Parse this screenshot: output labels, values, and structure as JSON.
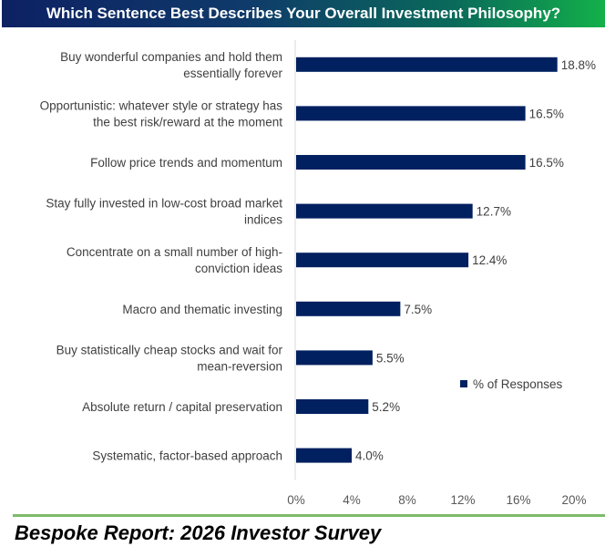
{
  "chart_data": {
    "type": "bar",
    "orientation": "horizontal",
    "title": "Which Sentence Best Describes Your Overall Investment Philosophy?",
    "categories": [
      [
        "Buy wonderful companies and hold them",
        "essentially forever"
      ],
      [
        "Opportunistic: whatever style or strategy has",
        "the best risk/reward at the moment"
      ],
      [
        "Follow price trends and momentum"
      ],
      [
        "Stay fully invested in low-cost broad market",
        "indices"
      ],
      [
        "Concentrate on a small number of high-",
        "conviction ideas"
      ],
      [
        "Macro and thematic investing"
      ],
      [
        "Buy statistically cheap stocks and wait for",
        "mean-reversion"
      ],
      [
        "Absolute return / capital preservation"
      ],
      [
        "Systematic, factor-based approach"
      ]
    ],
    "series": [
      {
        "name": "% of Responses",
        "values": [
          18.8,
          16.5,
          16.5,
          12.7,
          12.4,
          7.5,
          5.5,
          5.2,
          4.0
        ]
      }
    ],
    "data_labels": [
      "18.8%",
      "16.5%",
      "16.5%",
      "12.7%",
      "12.4%",
      "7.5%",
      "5.5%",
      "5.2%",
      "4.0%"
    ],
    "xlim": [
      0,
      20
    ],
    "xticks": [
      "0%",
      "4%",
      "8%",
      "12%",
      "16%",
      "20%"
    ],
    "grid": false,
    "legend_position": "right",
    "bar_color": "#002060"
  },
  "footer": "Bespoke Report: 2026 Investor Survey"
}
